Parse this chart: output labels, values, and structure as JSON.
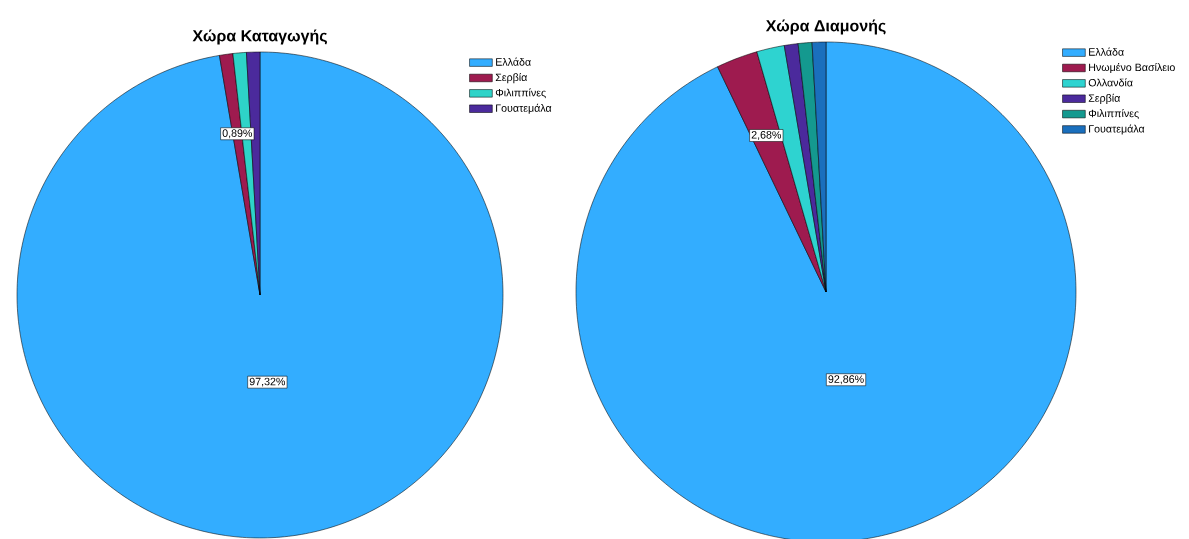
{
  "chart_data": [
    {
      "type": "pie",
      "title": "Χώρα Καταγωγής",
      "categories": [
        "Ελλάδα",
        "Σερβία",
        "Φιλιππίνες",
        "Γουατεμάλα"
      ],
      "values": [
        97.32,
        0.89,
        0.89,
        0.89
      ],
      "colors": [
        "#33adff",
        "#9e1b4f",
        "#2ed3c8",
        "#4b2a9c"
      ],
      "value_labels": [
        "97,32%",
        "0,89%",
        null,
        null
      ],
      "legend": "top right"
    },
    {
      "type": "pie",
      "title": "Χώρα Διαμονής",
      "categories": [
        "Ελλάδα",
        "Ηνωμένο Βασίλειο",
        "Ολλανδία",
        "Σερβία",
        "Φιλιππίνες",
        "Γουατεμάλα"
      ],
      "values": [
        92.86,
        2.68,
        1.79,
        0.89,
        0.89,
        0.89
      ],
      "colors": [
        "#33adff",
        "#9e1b4f",
        "#2ed3d0",
        "#4b2a9c",
        "#14998f",
        "#1a6fbd"
      ],
      "value_labels": [
        "92,86%",
        "2,68%",
        null,
        null,
        null,
        null
      ],
      "legend": "top right"
    }
  ]
}
